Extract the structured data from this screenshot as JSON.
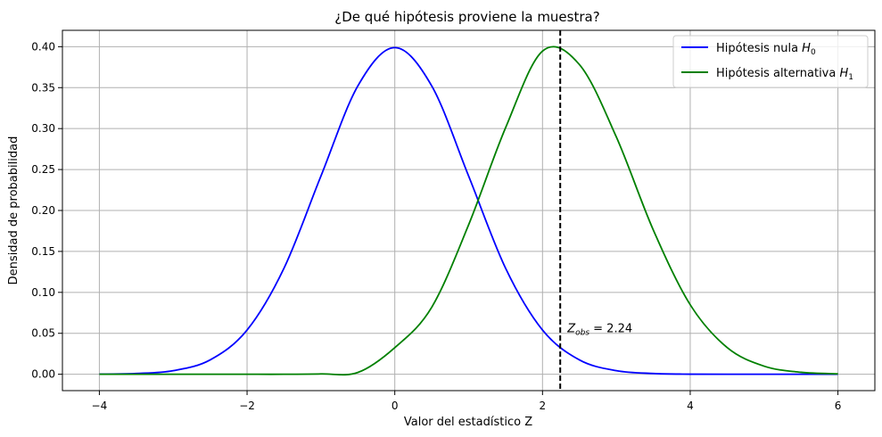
{
  "chart_data": {
    "type": "line",
    "title": "¿De qué hipótesis proviene la muestra?",
    "xlabel": "Valor del estadístico Z",
    "ylabel": "Densidad de probabilidad",
    "xlim": [
      -4.5,
      6.5
    ],
    "ylim": [
      -0.02,
      0.42
    ],
    "xticks": [
      -4,
      -2,
      0,
      2,
      4,
      6
    ],
    "xtick_labels": [
      "−4",
      "−2",
      "0",
      "2",
      "4",
      "6"
    ],
    "yticks": [
      0.0,
      0.05,
      0.1,
      0.15,
      0.2,
      0.25,
      0.3,
      0.35,
      0.4
    ],
    "ytick_labels": [
      "0.00",
      "0.05",
      "0.10",
      "0.15",
      "0.20",
      "0.25",
      "0.30",
      "0.35",
      "0.40"
    ],
    "grid": true,
    "legend_position": "top-right",
    "series": [
      {
        "name": "Hipótesis nula H0",
        "legend_main": "Hipótesis nula ",
        "legend_sym": "H",
        "legend_sub": "0",
        "color": "#0000ff",
        "x": [
          -4,
          -3.5,
          -3,
          -2.5,
          -2,
          -1.5,
          -1,
          -0.5,
          0,
          0.5,
          1,
          1.5,
          2,
          2.5,
          3,
          3.5,
          4,
          4.5,
          5,
          5.5,
          6
        ],
        "y": [
          0.0001,
          0.0009,
          0.0044,
          0.0175,
          0.054,
          0.1295,
          0.242,
          0.3521,
          0.3989,
          0.3521,
          0.242,
          0.1295,
          0.054,
          0.0175,
          0.0044,
          0.0009,
          0.0001,
          0.0,
          0.0,
          0.0,
          0.0
        ]
      },
      {
        "name": "Hipótesis alternativa H1",
        "legend_main": "Hipótesis alternativa ",
        "legend_sym": "H",
        "legend_sub": "1",
        "color": "#008000",
        "x": [
          -4,
          -3.5,
          -3,
          -2.5,
          -2,
          -1.5,
          -1,
          -0.5,
          0,
          0.5,
          1,
          1.5,
          2,
          2.5,
          3,
          3.5,
          4,
          4.5,
          5,
          5.5,
          6
        ],
        "y": [
          0.0,
          0.0,
          0.0,
          0.0,
          0.0,
          0.0,
          0.0004,
          0.0022,
          0.0325,
          0.0818,
          0.1826,
          0.301,
          0.3946,
          0.3781,
          0.2897,
          0.1762,
          0.0849,
          0.0326,
          0.0099,
          0.0024,
          0.0005
        ]
      }
    ],
    "observed": {
      "x": 2.24,
      "color": "#000000",
      "style": "dashed",
      "label_sym": "Z",
      "label_sub": "obs",
      "label_rest": " = 2.24",
      "label_y": 0.05
    }
  }
}
